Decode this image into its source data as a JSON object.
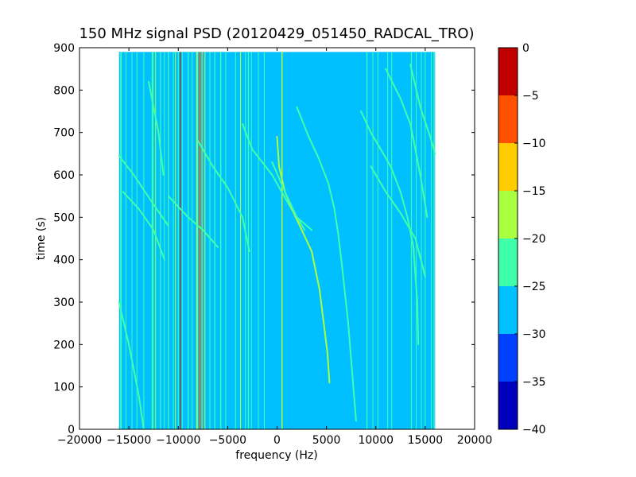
{
  "chart_data": {
    "type": "heatmap",
    "title": "150 MHz signal PSD (20120429_051450_RADCAL_TRO)",
    "xlabel": "frequency (Hz)",
    "ylabel": "time (s)",
    "xlim": [
      -20000,
      20000
    ],
    "ylim": [
      0,
      900
    ],
    "xticks": [
      -20000,
      -15000,
      -10000,
      -5000,
      0,
      5000,
      10000,
      15000,
      20000
    ],
    "yticks": [
      0,
      100,
      200,
      300,
      400,
      500,
      600,
      700,
      800,
      900
    ],
    "data_extent": {
      "x": [
        -16000,
        16000
      ],
      "y": [
        0,
        890
      ]
    },
    "background_level": -27.5,
    "colorbar": {
      "levels": [
        -40,
        -35,
        -30,
        -25,
        -20,
        -15,
        -10,
        -5,
        0
      ],
      "colors": [
        "#0000bb",
        "#0040ff",
        "#00c0ff",
        "#40ffaa",
        "#aaff40",
        "#ffcc00",
        "#ff5000",
        "#c00000"
      ]
    },
    "vertical_lines": [
      {
        "freq": -15800,
        "width": 150,
        "level": -22.5
      },
      {
        "freq": -15300,
        "width": 80,
        "level": -22.5
      },
      {
        "freq": -14700,
        "width": 60,
        "level": -22.5
      },
      {
        "freq": -14200,
        "width": 60,
        "level": -22.5
      },
      {
        "freq": -13500,
        "width": 60,
        "level": -22.5
      },
      {
        "freq": -12600,
        "width": 180,
        "level": -22.5
      },
      {
        "freq": -12300,
        "width": 70,
        "level": -17.5
      },
      {
        "freq": -11800,
        "width": 100,
        "level": -22.5
      },
      {
        "freq": -11400,
        "width": 80,
        "level": -22.5
      },
      {
        "freq": -11000,
        "width": 100,
        "level": -22.5
      },
      {
        "freq": -10500,
        "width": 70,
        "level": -22.5
      },
      {
        "freq": -10300,
        "width": 60,
        "level": -17.5
      },
      {
        "freq": -10000,
        "width": 70,
        "level": -22.5
      },
      {
        "freq": -9800,
        "width": 60,
        "level": -2.5
      },
      {
        "freq": -9600,
        "width": 70,
        "level": -22.5
      },
      {
        "freq": -9000,
        "width": 100,
        "level": -22.5
      },
      {
        "freq": -8600,
        "width": 80,
        "level": -22.5
      },
      {
        "freq": -8100,
        "width": 150,
        "level": -17.5
      },
      {
        "freq": -7800,
        "width": 110,
        "level": -7.5
      },
      {
        "freq": -7600,
        "width": 70,
        "level": -12.5
      },
      {
        "freq": -7300,
        "width": 90,
        "level": -17.5
      },
      {
        "freq": -6800,
        "width": 90,
        "level": -22.5
      },
      {
        "freq": -6300,
        "width": 100,
        "level": -22.5
      },
      {
        "freq": -5700,
        "width": 120,
        "level": -22.5
      },
      {
        "freq": -5200,
        "width": 80,
        "level": -22.5
      },
      {
        "freq": -4200,
        "width": 80,
        "level": -22.5
      },
      {
        "freq": -3700,
        "width": 90,
        "level": -17.5
      },
      {
        "freq": -3200,
        "width": 80,
        "level": -22.5
      },
      {
        "freq": -2900,
        "width": 100,
        "level": -22.5
      },
      {
        "freq": -2600,
        "width": 80,
        "level": -22.5
      },
      {
        "freq": -1900,
        "width": 60,
        "level": -22.5
      },
      {
        "freq": -1300,
        "width": 60,
        "level": -22.5
      },
      {
        "freq": 500,
        "width": 120,
        "level": -17.5
      },
      {
        "freq": 9100,
        "width": 100,
        "level": -22.5
      },
      {
        "freq": 9700,
        "width": 80,
        "level": -22.5
      },
      {
        "freq": 10200,
        "width": 60,
        "level": -22.5
      },
      {
        "freq": 11200,
        "width": 80,
        "level": -22.5
      },
      {
        "freq": 11600,
        "width": 60,
        "level": -22.5
      },
      {
        "freq": 13600,
        "width": 100,
        "level": -22.5
      },
      {
        "freq": 14100,
        "width": 80,
        "level": -22.5
      },
      {
        "freq": 14600,
        "width": 60,
        "level": -22.5
      },
      {
        "freq": 15000,
        "width": 80,
        "level": -22.5
      },
      {
        "freq": 15600,
        "width": 60,
        "level": -22.5
      },
      {
        "freq": 15900,
        "width": 100,
        "level": -22.5
      }
    ],
    "traces": [
      {
        "level": -22.5,
        "points": [
          [
            -16000,
            645
          ],
          [
            -14500,
            600
          ],
          [
            -12500,
            530
          ],
          [
            -11000,
            480
          ]
        ]
      },
      {
        "level": -22.5,
        "points": [
          [
            -15600,
            560
          ],
          [
            -14000,
            520
          ],
          [
            -12500,
            470
          ],
          [
            -11400,
            400
          ]
        ]
      },
      {
        "level": -22.5,
        "points": [
          [
            -11000,
            550
          ],
          [
            -9000,
            500
          ],
          [
            -7500,
            470
          ],
          [
            -6000,
            430
          ]
        ]
      },
      {
        "level": -22.5,
        "points": [
          [
            -8000,
            680
          ],
          [
            -6500,
            620
          ],
          [
            -5000,
            570
          ],
          [
            -3500,
            500
          ],
          [
            -2800,
            420
          ]
        ]
      },
      {
        "level": -22.5,
        "points": [
          [
            -3500,
            720
          ],
          [
            -2500,
            660
          ],
          [
            -500,
            600
          ],
          [
            1200,
            530
          ],
          [
            2800,
            470
          ]
        ]
      },
      {
        "level": -17.5,
        "points": [
          [
            0,
            690
          ],
          [
            200,
            620
          ],
          [
            800,
            560
          ],
          [
            1500,
            520
          ],
          [
            2500,
            470
          ],
          [
            3500,
            420
          ],
          [
            4300,
            330
          ],
          [
            5100,
            180
          ],
          [
            5300,
            110
          ]
        ]
      },
      {
        "level": -22.5,
        "points": [
          [
            -500,
            630
          ],
          [
            800,
            560
          ],
          [
            2000,
            500
          ],
          [
            3500,
            470
          ]
        ]
      },
      {
        "level": -22.5,
        "points": [
          [
            2000,
            760
          ],
          [
            3200,
            690
          ],
          [
            4200,
            640
          ],
          [
            5200,
            580
          ],
          [
            5800,
            520
          ],
          [
            6200,
            460
          ],
          [
            6600,
            380
          ],
          [
            7200,
            250
          ],
          [
            8000,
            20
          ]
        ]
      },
      {
        "level": -22.5,
        "points": [
          [
            8500,
            750
          ],
          [
            9500,
            700
          ],
          [
            10500,
            660
          ],
          [
            11500,
            620
          ],
          [
            12500,
            560
          ],
          [
            13200,
            500
          ],
          [
            13800,
            430
          ],
          [
            14200,
            300
          ],
          [
            14300,
            200
          ]
        ]
      },
      {
        "level": -22.5,
        "points": [
          [
            9500,
            620
          ],
          [
            11000,
            560
          ],
          [
            12500,
            510
          ],
          [
            14000,
            450
          ],
          [
            15000,
            360
          ]
        ]
      },
      {
        "level": -22.5,
        "points": [
          [
            11000,
            850
          ],
          [
            12500,
            780
          ],
          [
            13500,
            720
          ],
          [
            14500,
            600
          ],
          [
            15200,
            500
          ]
        ]
      },
      {
        "level": -22.5,
        "points": [
          [
            13500,
            860
          ],
          [
            14500,
            760
          ],
          [
            15500,
            690
          ],
          [
            16000,
            650
          ]
        ]
      },
      {
        "level": -22.5,
        "points": [
          [
            -16000,
            300
          ],
          [
            -15000,
            200
          ],
          [
            -14000,
            80
          ],
          [
            -13500,
            0
          ]
        ]
      },
      {
        "level": -22.5,
        "points": [
          [
            -13000,
            820
          ],
          [
            -12000,
            700
          ],
          [
            -11500,
            600
          ]
        ]
      }
    ]
  }
}
